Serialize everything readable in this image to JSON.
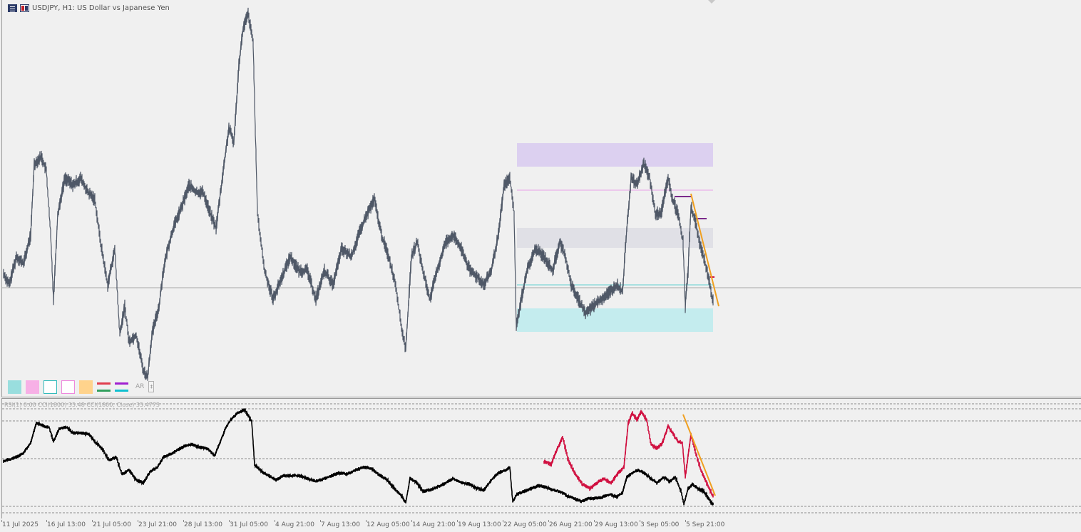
{
  "window": {
    "title": "USDJPY, H1:  US Dollar vs Japanese Yen"
  },
  "indicator": {
    "label": "RSI(1) 0.00 CCI(1800) 35.48 CCI(1800, Close) 35.4773"
  },
  "toolbar": {
    "swatches": [
      {
        "name": "zone-cyan-filled",
        "fill": "#99dede",
        "border": "#99dede"
      },
      {
        "name": "zone-pink-filled",
        "fill": "#f7b0e6",
        "border": "#f7b0e6"
      },
      {
        "name": "zone-cyan-outline",
        "fill": "#ffffff",
        "border": "#33bbbb"
      },
      {
        "name": "zone-pink-outline",
        "fill": "#ffffff",
        "border": "#ee88dd"
      },
      {
        "name": "zone-orange-filled",
        "fill": "#ffd38c",
        "border": "#ffd38c"
      }
    ],
    "line_pairs": [
      {
        "top": "#e03e4e",
        "bottom": "#32a05e"
      },
      {
        "top": "#a020d0",
        "bottom": "#10c0d0"
      }
    ],
    "text_button": "AR",
    "mini_button": "‡"
  },
  "colors": {
    "background": "#f0f0f0",
    "price_line": "#4f5867",
    "cci_line": "#000000",
    "cci_highlight": "#d01040",
    "trendline": "#f0a020",
    "zone_top": "#dcd0f0",
    "zone_mid": "#e0e0e6",
    "zone_bottom": "#c4ecee",
    "level_pink": "#e8a0e8",
    "level_cyan": "#60d0d0",
    "purple_marks": "#7a2a8a",
    "axis_text": "#606060"
  },
  "xaxis": {
    "labels": [
      "11 Jul 2025",
      "16 Jul 13:00",
      "21 Jul 05:00",
      "23 Jul 21:00",
      "28 Jul 13:00",
      "31 Jul 05:00",
      "4 Aug 21:00",
      "7 Aug 13:00",
      "12 Aug 05:00",
      "14 Aug 21:00",
      "19 Aug 13:00",
      "22 Aug 05:00",
      "26 Aug 21:00",
      "29 Aug 13:00",
      "3 Sep 05:00",
      "5 Sep 21:00"
    ]
  }
}
